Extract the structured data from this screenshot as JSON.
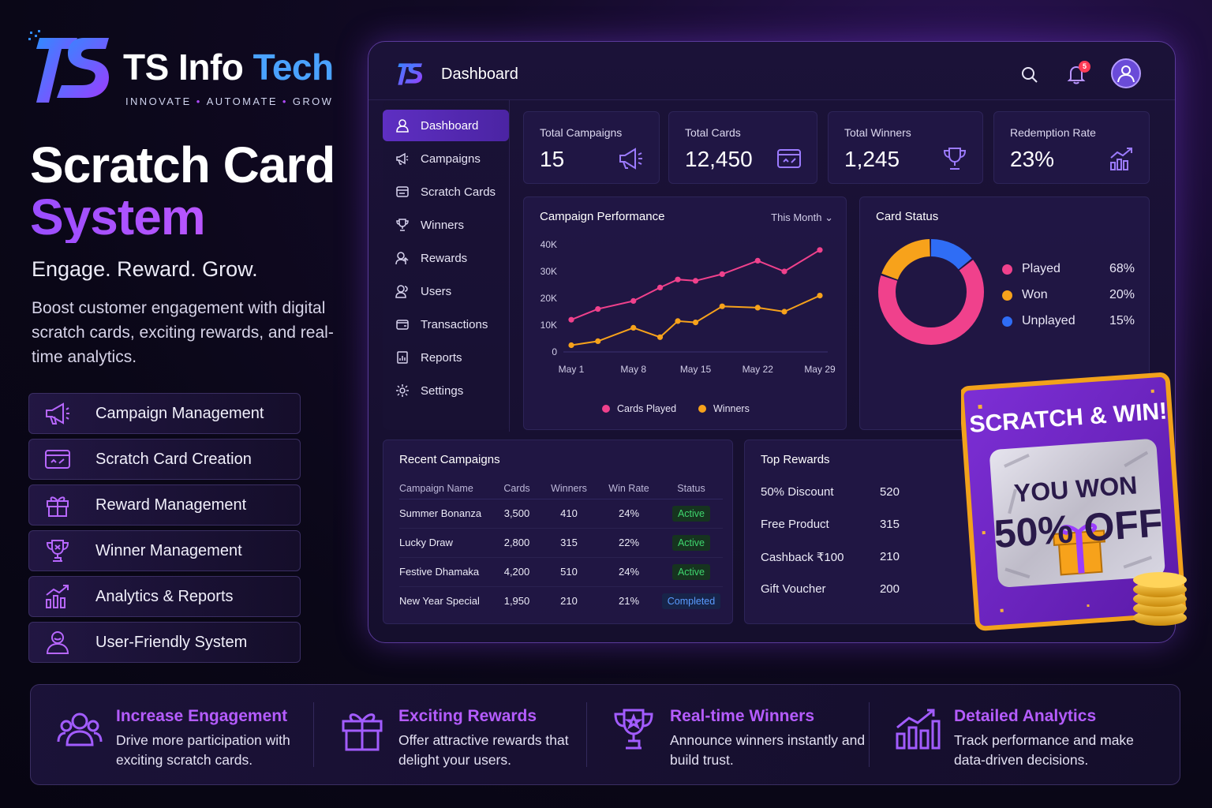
{
  "brand": {
    "name_part1": "TS Info",
    "name_part2": "Tech",
    "tagline_1": "INNOVATE",
    "tagline_2": "AUTOMATE",
    "tagline_3": "GROW"
  },
  "hero": {
    "title_line1": "Scratch Card",
    "title_line2": "System",
    "subtitle": "Engage. Reward. Grow.",
    "description": "Boost customer engagement with digital scratch cards, exciting rewards, and real-time analytics."
  },
  "features": [
    {
      "label": "Campaign Management",
      "icon": "megaphone-icon"
    },
    {
      "label": "Scratch Card Creation",
      "icon": "card-icon"
    },
    {
      "label": "Reward Management",
      "icon": "gift-icon"
    },
    {
      "label": "Winner Management",
      "icon": "trophy-icon"
    },
    {
      "label": "Analytics & Reports",
      "icon": "chart-icon"
    },
    {
      "label": "User-Friendly System",
      "icon": "user-icon"
    }
  ],
  "dashboard": {
    "title": "Dashboard",
    "notification_count": "5",
    "sidebar": [
      {
        "label": "Dashboard",
        "icon": "dashboard-icon"
      },
      {
        "label": "Campaigns",
        "icon": "megaphone-icon"
      },
      {
        "label": "Scratch Cards",
        "icon": "card-icon"
      },
      {
        "label": "Winners",
        "icon": "trophy-icon"
      },
      {
        "label": "Rewards",
        "icon": "rewards-icon"
      },
      {
        "label": "Users",
        "icon": "users-icon"
      },
      {
        "label": "Transactions",
        "icon": "wallet-icon"
      },
      {
        "label": "Reports",
        "icon": "report-icon"
      },
      {
        "label": "Settings",
        "icon": "gear-icon"
      }
    ],
    "stats": [
      {
        "label": "Total Campaigns",
        "value": "15",
        "icon": "megaphone-icon"
      },
      {
        "label": "Total Cards",
        "value": "12,450",
        "icon": "card-icon"
      },
      {
        "label": "Total Winners",
        "value": "1,245",
        "icon": "trophy-icon"
      },
      {
        "label": "Redemption Rate",
        "value": "23%",
        "icon": "chart-icon"
      }
    ],
    "performance": {
      "title": "Campaign Performance",
      "range": "This Month",
      "legend_played": "Cards Played",
      "legend_winners": "Winners"
    },
    "card_status": {
      "title": "Card Status",
      "items": [
        {
          "label": "Played",
          "percent": "68%",
          "color": "#f0418c"
        },
        {
          "label": "Won",
          "percent": "20%",
          "color": "#f7a21b"
        },
        {
          "label": "Unplayed",
          "percent": "15%",
          "color": "#2f6df5"
        }
      ]
    },
    "recent": {
      "title": "Recent Campaigns",
      "columns": [
        "Campaign Name",
        "Cards",
        "Winners",
        "Win Rate",
        "Status"
      ],
      "rows": [
        [
          "Summer Bonanza",
          "3,500",
          "410",
          "24%",
          "Active"
        ],
        [
          "Lucky Draw",
          "2,800",
          "315",
          "22%",
          "Active"
        ],
        [
          "Festive Dhamaka",
          "4,200",
          "510",
          "24%",
          "Active"
        ],
        [
          "New Year Special",
          "1,950",
          "210",
          "21%",
          "Completed"
        ]
      ]
    },
    "top_rewards": {
      "title": "Top Rewards",
      "rows": [
        {
          "name": "50% Discount",
          "value": "520"
        },
        {
          "name": "Free Product",
          "value": "315"
        },
        {
          "name": "Cashback ₹100",
          "value": "210"
        },
        {
          "name": "Gift Voucher",
          "value": "200"
        }
      ]
    }
  },
  "scratch_card": {
    "heading": "SCRATCH & WIN!",
    "line1": "YOU WON",
    "line2": "50% OFF"
  },
  "benefits": [
    {
      "title": "Increase Engagement",
      "desc": "Drive more participation with exciting scratch cards.",
      "icon": "users-icon"
    },
    {
      "title": "Exciting Rewards",
      "desc": "Offer attractive rewards that delight your users.",
      "icon": "gift-icon"
    },
    {
      "title": "Real-time Winners",
      "desc": "Announce winners instantly and build trust.",
      "icon": "trophy-icon"
    },
    {
      "title": "Detailed Analytics",
      "desc": "Track performance and make data-driven decisions.",
      "icon": "chart-icon"
    }
  ],
  "chart_data": [
    {
      "type": "line",
      "title": "Campaign Performance",
      "x": [
        "May 1",
        "May 4",
        "May 8",
        "May 11",
        "May 13",
        "May 15",
        "May 18",
        "May 22",
        "May 25",
        "May 29"
      ],
      "tick_labels": [
        "May 1",
        "May 8",
        "May 15",
        "May 22",
        "May 29"
      ],
      "y_ticks": [
        "0",
        "10K",
        "20K",
        "30K",
        "40K"
      ],
      "ylim": [
        0,
        40000
      ],
      "series": [
        {
          "name": "Cards Played",
          "color": "#f0418c",
          "values": [
            12000,
            16000,
            19000,
            24000,
            27000,
            26500,
            29000,
            34000,
            30000,
            38000
          ]
        },
        {
          "name": "Winners",
          "color": "#f7a21b",
          "values": [
            2500,
            4000,
            9000,
            5500,
            11500,
            11000,
            17000,
            16500,
            15000,
            21000
          ]
        }
      ],
      "grid": false,
      "legend": "bottom"
    },
    {
      "type": "pie",
      "title": "Card Status",
      "labels": [
        "Played",
        "Won",
        "Unplayed"
      ],
      "values": [
        68,
        20,
        15
      ]
    }
  ]
}
